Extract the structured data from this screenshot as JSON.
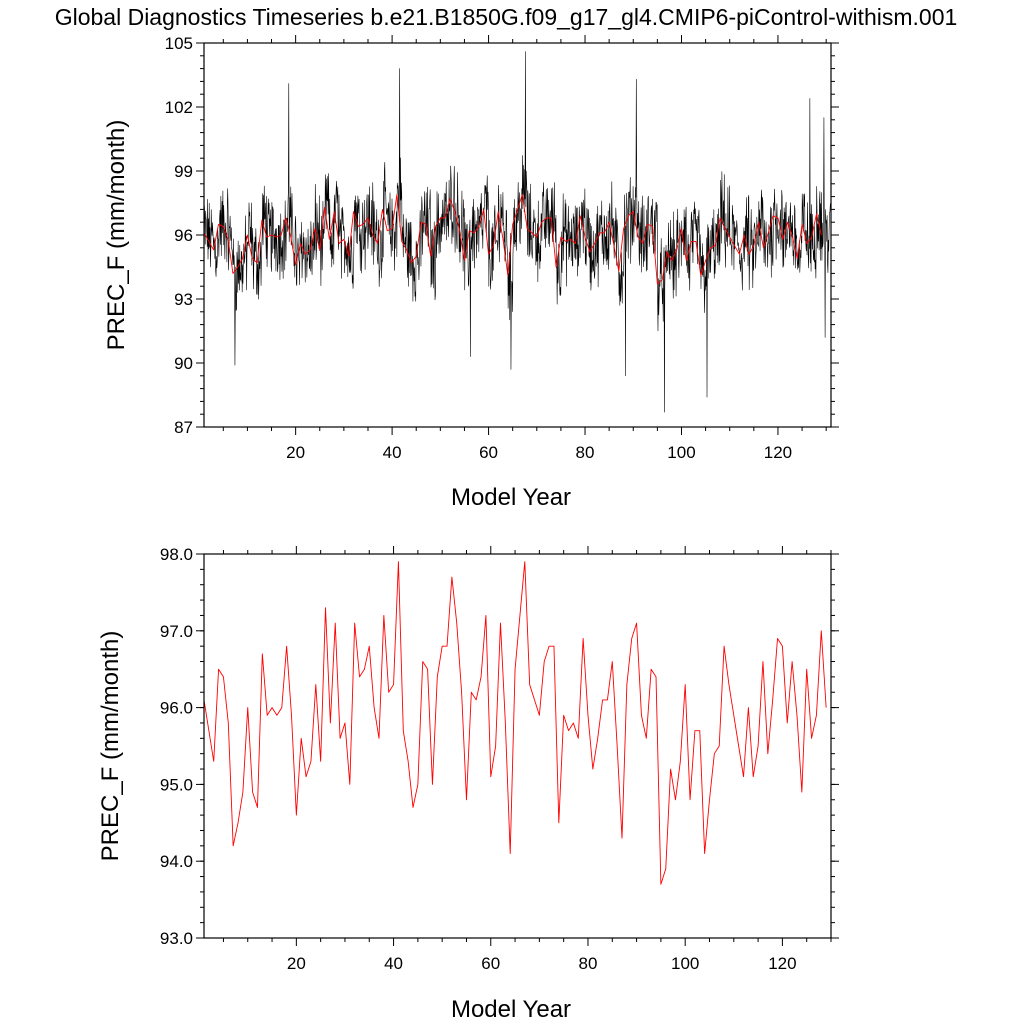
{
  "figure_title": "Global Diagnostics Timeseries b.e21.B1850G.f09_g17_gl4.CMIP6-piControl-withism.001",
  "colors": {
    "monthly": "#000000",
    "annual": "#ff0000",
    "axis": "#000000"
  },
  "chart_data": [
    {
      "type": "line",
      "title": "Global Diagnostics Timeseries b.e21.B1850G.f09_g17_gl4.CMIP6-piControl-withism.001",
      "xlabel": "Model Year",
      "ylabel": "PREC_F (mm/month)",
      "xlim": [
        1,
        131
      ],
      "ylim": [
        87,
        105
      ],
      "xticks": [
        20,
        40,
        60,
        80,
        100,
        120
      ],
      "xtick_labels": [
        "20",
        "40",
        "60",
        "80",
        "100",
        "120"
      ],
      "yticks": [
        87,
        90,
        93,
        96,
        99,
        102,
        105
      ],
      "ytick_labels": [
        "87",
        "90",
        "93",
        "96",
        "99",
        "102",
        "105"
      ],
      "series": [
        {
          "name": "monthly",
          "color": "#000000",
          "note": "monthly global-mean values, approx. 91–100 mm/month with spikes; extremes 104.6 near year 67.6 and 87.7 near year 96.5",
          "x_start": 1,
          "x_step": 0.0833,
          "n": 1560,
          "noise_amplitude": 1.8,
          "extremes": [
            {
              "x": 18.6,
              "y": 103.1
            },
            {
              "x": 41.6,
              "y": 103.8
            },
            {
              "x": 67.6,
              "y": 104.6
            },
            {
              "x": 90.6,
              "y": 103.3
            },
            {
              "x": 126.6,
              "y": 102.4
            },
            {
              "x": 129.5,
              "y": 101.5
            },
            {
              "x": 7.4,
              "y": 89.9
            },
            {
              "x": 56.2,
              "y": 90.3
            },
            {
              "x": 64.6,
              "y": 89.7
            },
            {
              "x": 88.4,
              "y": 89.4
            },
            {
              "x": 96.5,
              "y": 87.7
            },
            {
              "x": 105.3,
              "y": 88.4
            },
            {
              "x": 129.8,
              "y": 91.2
            }
          ]
        },
        {
          "name": "annual",
          "color": "#ff0000",
          "x_start": 1,
          "x_step": 1,
          "values": [
            96.1,
            95.7,
            95.3,
            96.5,
            96.4,
            95.8,
            94.2,
            94.5,
            94.9,
            96.0,
            94.9,
            94.7,
            96.7,
            95.9,
            96.0,
            95.9,
            96.0,
            96.8,
            95.9,
            94.6,
            95.6,
            95.1,
            95.3,
            96.3,
            95.3,
            97.3,
            95.8,
            97.1,
            95.6,
            95.8,
            95.0,
            97.1,
            96.4,
            96.5,
            96.8,
            96.0,
            95.6,
            97.2,
            96.2,
            96.3,
            97.9,
            95.7,
            95.3,
            94.7,
            95.0,
            96.6,
            96.5,
            95.0,
            96.4,
            96.8,
            96.8,
            97.7,
            97.1,
            96.2,
            94.8,
            96.2,
            96.1,
            96.4,
            97.2,
            95.1,
            95.5,
            97.1,
            95.8,
            94.1,
            96.5,
            97.2,
            97.9,
            96.3,
            96.1,
            95.9,
            96.6,
            96.8,
            96.8,
            94.5,
            95.9,
            95.7,
            95.8,
            95.6,
            96.9,
            95.9,
            95.2,
            95.6,
            96.1,
            96.1,
            96.6,
            95.5,
            94.3,
            96.3,
            96.9,
            97.1,
            95.9,
            95.6,
            96.5,
            96.4,
            93.7,
            93.9,
            95.2,
            94.8,
            95.3,
            96.3,
            94.8,
            95.7,
            95.7,
            94.1,
            94.8,
            95.4,
            95.5,
            96.8,
            96.3,
            95.9,
            95.5,
            95.1,
            96.0,
            95.1,
            95.5,
            96.6,
            95.4,
            96.1,
            96.9,
            96.8,
            95.8,
            96.6,
            95.9,
            94.9,
            96.5,
            95.6,
            95.9,
            97.0,
            96.0
          ]
        }
      ]
    },
    {
      "type": "line",
      "title": "",
      "xlabel": "Model Year",
      "ylabel": "PREC_F (mm/month)",
      "xlim": [
        1,
        130
      ],
      "ylim": [
        93.0,
        98.0
      ],
      "xticks": [
        20,
        40,
        60,
        80,
        100,
        120
      ],
      "xtick_labels": [
        "20",
        "40",
        "60",
        "80",
        "100",
        "120"
      ],
      "yticks": [
        93.0,
        94.0,
        95.0,
        96.0,
        97.0,
        98.0
      ],
      "ytick_labels": [
        "93.0",
        "94.0",
        "95.0",
        "96.0",
        "97.0",
        "98.0"
      ],
      "series": [
        {
          "name": "annual",
          "color": "#ff0000",
          "x_start": 1,
          "x_step": 1,
          "values": [
            96.1,
            95.7,
            95.3,
            96.5,
            96.4,
            95.8,
            94.2,
            94.5,
            94.9,
            96.0,
            94.9,
            94.7,
            96.7,
            95.9,
            96.0,
            95.9,
            96.0,
            96.8,
            95.9,
            94.6,
            95.6,
            95.1,
            95.3,
            96.3,
            95.3,
            97.3,
            95.8,
            97.1,
            95.6,
            95.8,
            95.0,
            97.1,
            96.4,
            96.5,
            96.8,
            96.0,
            95.6,
            97.2,
            96.2,
            96.3,
            97.9,
            95.7,
            95.3,
            94.7,
            95.0,
            96.6,
            96.5,
            95.0,
            96.4,
            96.8,
            96.8,
            97.7,
            97.1,
            96.2,
            94.8,
            96.2,
            96.1,
            96.4,
            97.2,
            95.1,
            95.5,
            97.1,
            95.8,
            94.1,
            96.5,
            97.2,
            97.9,
            96.3,
            96.1,
            95.9,
            96.6,
            96.8,
            96.8,
            94.5,
            95.9,
            95.7,
            95.8,
            95.6,
            96.9,
            95.9,
            95.2,
            95.6,
            96.1,
            96.1,
            96.6,
            95.5,
            94.3,
            96.3,
            96.9,
            97.1,
            95.9,
            95.6,
            96.5,
            96.4,
            93.7,
            93.9,
            95.2,
            94.8,
            95.3,
            96.3,
            94.8,
            95.7,
            95.7,
            94.1,
            94.8,
            95.4,
            95.5,
            96.8,
            96.3,
            95.9,
            95.5,
            95.1,
            96.0,
            95.1,
            95.5,
            96.6,
            95.4,
            96.1,
            96.9,
            96.8,
            95.8,
            96.6,
            95.9,
            94.9,
            96.5,
            95.6,
            95.9,
            97.0,
            96.0
          ]
        }
      ]
    }
  ]
}
